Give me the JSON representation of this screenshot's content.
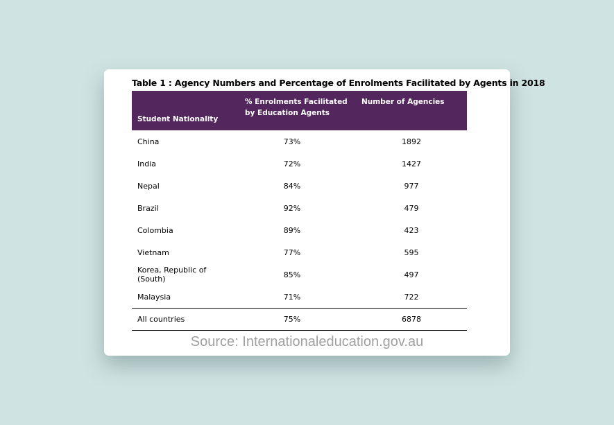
{
  "title": "Table 1 : Agency Numbers and Percentage of Enrolments Facilitated by Agents in 2018",
  "headers": [
    "Student Nationality",
    "% Enrolments Facilitated by Education Agents",
    "Number of Agencies"
  ],
  "rows": [
    [
      "China",
      "73%",
      "1892"
    ],
    [
      "India",
      "72%",
      "1427"
    ],
    [
      "Nepal",
      "84%",
      "977"
    ],
    [
      "Brazil",
      "92%",
      "479"
    ],
    [
      "Colombia",
      "89%",
      "423"
    ],
    [
      "Vietnam",
      "77%",
      "595"
    ],
    [
      "Korea, Republic of (South)",
      "85%",
      "497"
    ],
    [
      "Malaysia",
      "71%",
      "722"
    ]
  ],
  "total": [
    "All countries",
    "75%",
    "6878"
  ],
  "source": "Source: Internationaleducation.gov.au",
  "colors": {
    "header": "#54265e",
    "background": "#cfe3e2"
  }
}
